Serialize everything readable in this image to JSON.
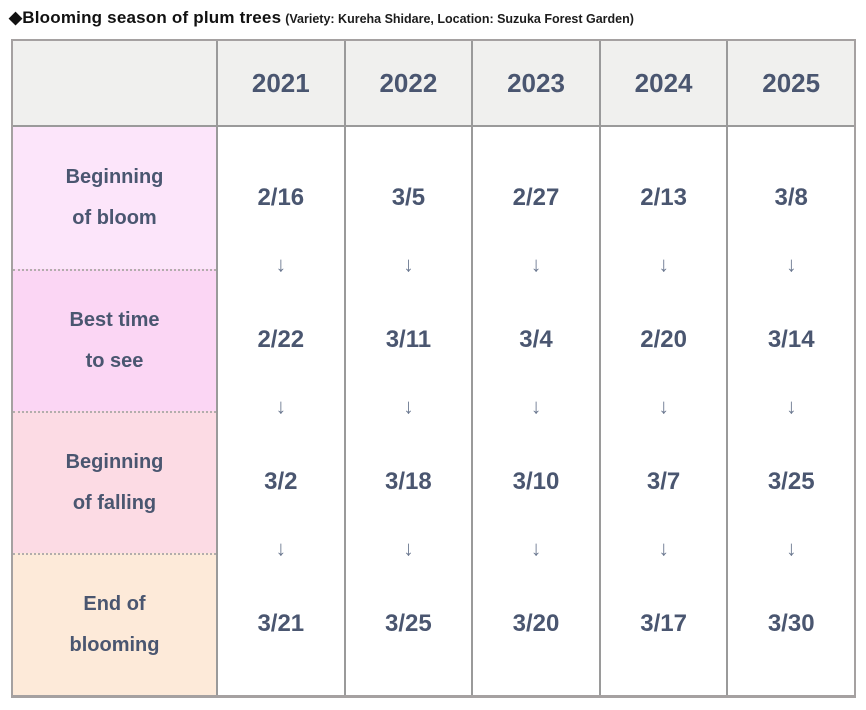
{
  "title": {
    "main": "◆Blooming season of plum trees",
    "sub": "(Variety: Kureha Shidare, Location: Suzuka Forest Garden)"
  },
  "colors": {
    "header_bg": "#f0f0ee",
    "text": "#4a5670",
    "arrow_color": "#6b7890",
    "border_outer": "#a5a1a1",
    "border_inner": "#9a9a9a",
    "row_bloom_bg": "#fce5fa",
    "row_best_bg": "#fbd6f4",
    "row_falling_bg": "#fcdbe4",
    "row_end_bg": "#fdead9"
  },
  "table": {
    "corner": "",
    "arrow": "↓",
    "rows": [
      {
        "label": "Beginning\nof bloom",
        "bg": "#fce5fa"
      },
      {
        "label": "Best time\nto see",
        "bg": "#fbd6f4"
      },
      {
        "label": "Beginning\nof falling",
        "bg": "#fcdbe4"
      },
      {
        "label": "End of\nblooming",
        "bg": "#fdead9"
      }
    ],
    "columns": [
      {
        "year": "2021",
        "dates": [
          "2/16",
          "2/22",
          "3/2",
          "3/21"
        ]
      },
      {
        "year": "2022",
        "dates": [
          "3/5",
          "3/11",
          "3/18",
          "3/25"
        ]
      },
      {
        "year": "2023",
        "dates": [
          "2/27",
          "3/4",
          "3/10",
          "3/20"
        ]
      },
      {
        "year": "2024",
        "dates": [
          "2/13",
          "2/20",
          "3/7",
          "3/17"
        ]
      },
      {
        "year": "2025",
        "dates": [
          "3/8",
          "3/14",
          "3/25",
          "3/30"
        ]
      }
    ]
  },
  "chart_data": {
    "type": "table",
    "title": "◆Blooming season of plum trees (Variety: Kureha Shidare, Location: Suzuka Forest Garden)",
    "columns": [
      "",
      "2021",
      "2022",
      "2023",
      "2024",
      "2025"
    ],
    "rows": [
      [
        "Beginning of bloom",
        "2/16",
        "3/5",
        "2/27",
        "2/13",
        "3/8"
      ],
      [
        "Best time to see",
        "2/22",
        "3/11",
        "3/4",
        "2/20",
        "3/14"
      ],
      [
        "Beginning of falling",
        "3/2",
        "3/18",
        "3/10",
        "3/7",
        "3/25"
      ],
      [
        "End of blooming",
        "3/21",
        "3/25",
        "3/20",
        "3/17",
        "3/30"
      ]
    ],
    "notes": "Each year column shows four sequential dates separated by down arrows indicating progression of the blooming season."
  }
}
